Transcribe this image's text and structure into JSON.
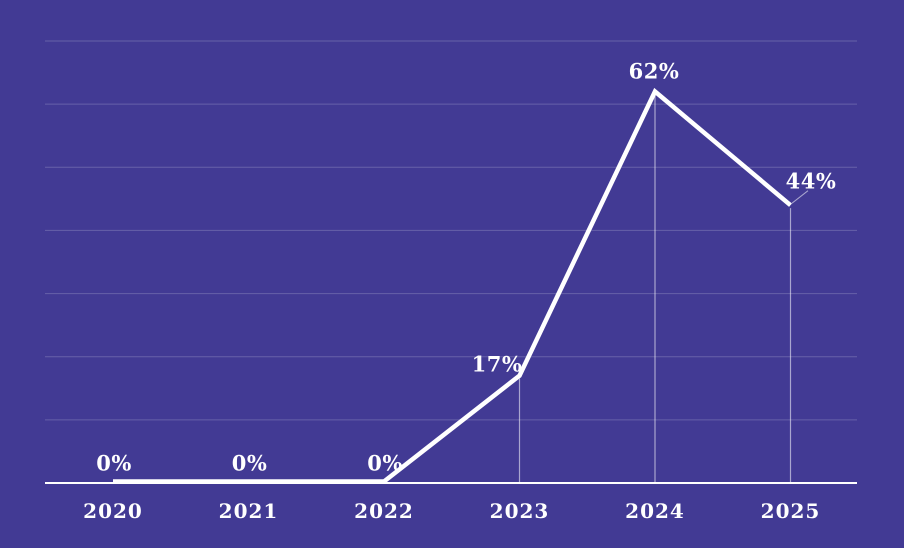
{
  "chart_data": {
    "type": "line",
    "title": "",
    "xlabel": "",
    "ylabel": "",
    "categories": [
      "2020",
      "2021",
      "2022",
      "2023",
      "2024",
      "2025"
    ],
    "values": [
      0,
      0,
      0,
      17,
      62,
      44
    ],
    "point_labels": [
      "0%",
      "0%",
      "0%",
      "17%",
      "62%",
      "44%"
    ],
    "ylim": [
      0,
      70
    ],
    "gridline_step_percent": 10,
    "grid": "horizontal-only",
    "legend": "none",
    "y_axis_tick_labels": "none",
    "drop_lines_from_points": [
      "2023",
      "2024",
      "2025"
    ],
    "leader_line_point": "2025",
    "colors": {
      "background": "#423A94",
      "line": "#FFFFFF",
      "axis": "#FFFFFF",
      "gridline": "rgba(255,255,255,0.20)",
      "drop_line": "rgba(255,255,255,0.55)",
      "leader_line": "rgba(255,255,255,0.55)",
      "label_text": "#FFFFFF",
      "tick_text": "#FFFFFF"
    }
  }
}
